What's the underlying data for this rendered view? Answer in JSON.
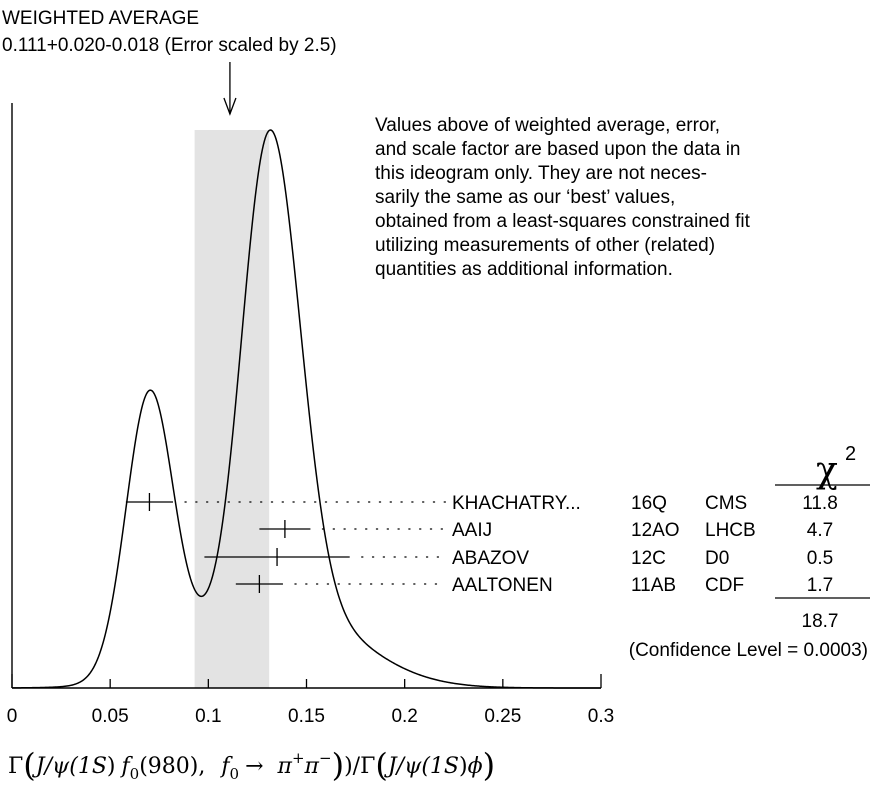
{
  "chart_data": {
    "type": "ideogram",
    "title": "WEIGHTED AVERAGE",
    "subtitle": "0.111+0.020-0.018 (Error scaled by 2.5)",
    "weighted_average": {
      "value": 0.111,
      "err_plus": 0.02,
      "err_minus": 0.018,
      "scale_factor": 2.5
    },
    "note_lines": [
      "Values above of weighted average, error,",
      "and scale factor are based upon the data in",
      "this ideogram only.  They are not neces-",
      "sarily the same as our ‘best’ values,",
      "obtained from a least-squares constrained fit",
      "utilizing measurements of other (related)",
      "quantities as additional information."
    ],
    "xlim": [
      0,
      0.3
    ],
    "ticks": [
      "0",
      "0.05",
      "0.1",
      "0.15",
      "0.2",
      "0.25",
      "0.3"
    ],
    "tick_values": [
      0,
      0.05,
      0.1,
      0.15,
      0.2,
      0.25,
      0.3
    ],
    "measurements": [
      {
        "author": "KHACHATRY...",
        "ref": "16Q",
        "experiment": "CMS",
        "value": 0.07,
        "error": 0.012,
        "chi2": "11.8"
      },
      {
        "author": "AAIJ",
        "ref": "12AO",
        "experiment": "LHCB",
        "value": 0.139,
        "error": 0.013,
        "chi2": "4.7"
      },
      {
        "author": "ABAZOV",
        "ref": "12C",
        "experiment": "D0",
        "value": 0.135,
        "error": 0.037,
        "chi2": "0.5"
      },
      {
        "author": "AALTONEN",
        "ref": "11AB",
        "experiment": "CDF",
        "value": 0.126,
        "error": 0.012,
        "chi2": "1.7"
      }
    ],
    "chi2_label": "χ",
    "chi2_power": "2",
    "chi2_total": "18.7",
    "confidence_level": "(Confidence Level = 0.0003)",
    "xlabel": {
      "gamma": "Γ",
      "j": "J",
      "psi": "/ψ(1",
      "s": "S",
      "close": ")",
      "f": "f",
      "sub0": "0",
      "mass": "(980),",
      "arrow": "→",
      "pi1": "π",
      "plus": "+",
      "pi2": "π",
      "minus": "−",
      "ratio": ")/Γ",
      "phi": "ϕ"
    }
  }
}
